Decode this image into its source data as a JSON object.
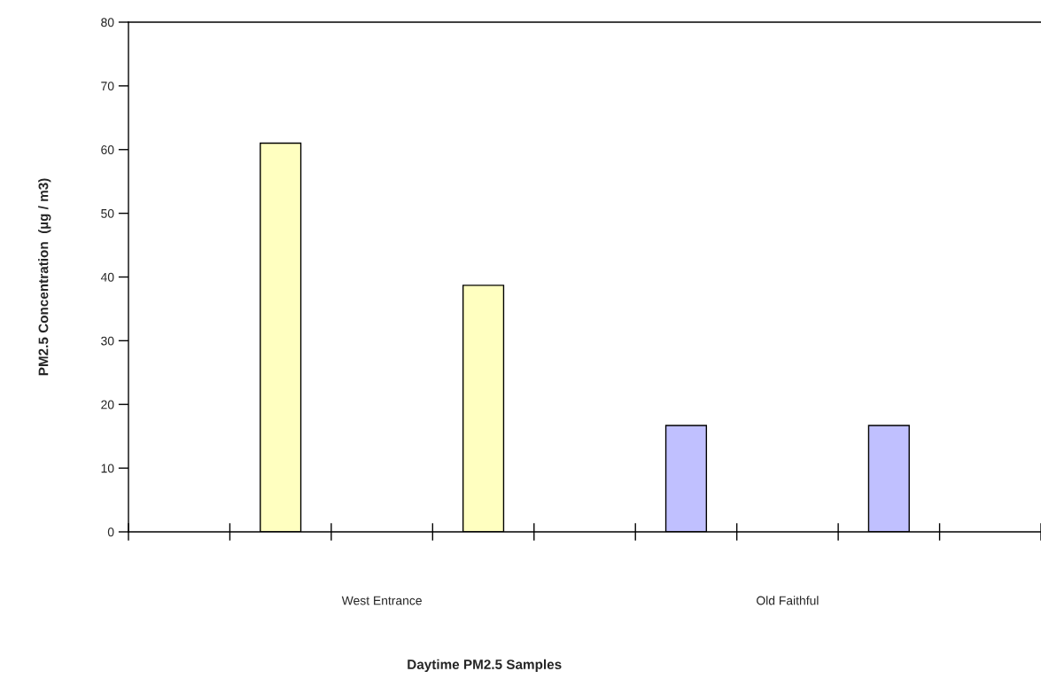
{
  "chart_data": {
    "type": "bar",
    "categories": [
      null,
      null,
      "West Entrance",
      null,
      null,
      null,
      "Old Faithful",
      null,
      null
    ],
    "values": [
      null,
      61,
      null,
      38.7,
      null,
      16.7,
      null,
      16.7,
      null
    ],
    "colors": [
      null,
      "#ffffc0",
      null,
      "#ffffc0",
      null,
      "#c0c0ff",
      null,
      "#c0c0ff",
      null
    ],
    "xlabel": "Daytime PM2.5 Samples",
    "ylabel": "PM2.5 Concentration  (µg / m3)",
    "ylim": [
      0,
      80
    ],
    "yticks": [
      0,
      10,
      20,
      30,
      40,
      50,
      60,
      70,
      80
    ],
    "grid": false
  }
}
